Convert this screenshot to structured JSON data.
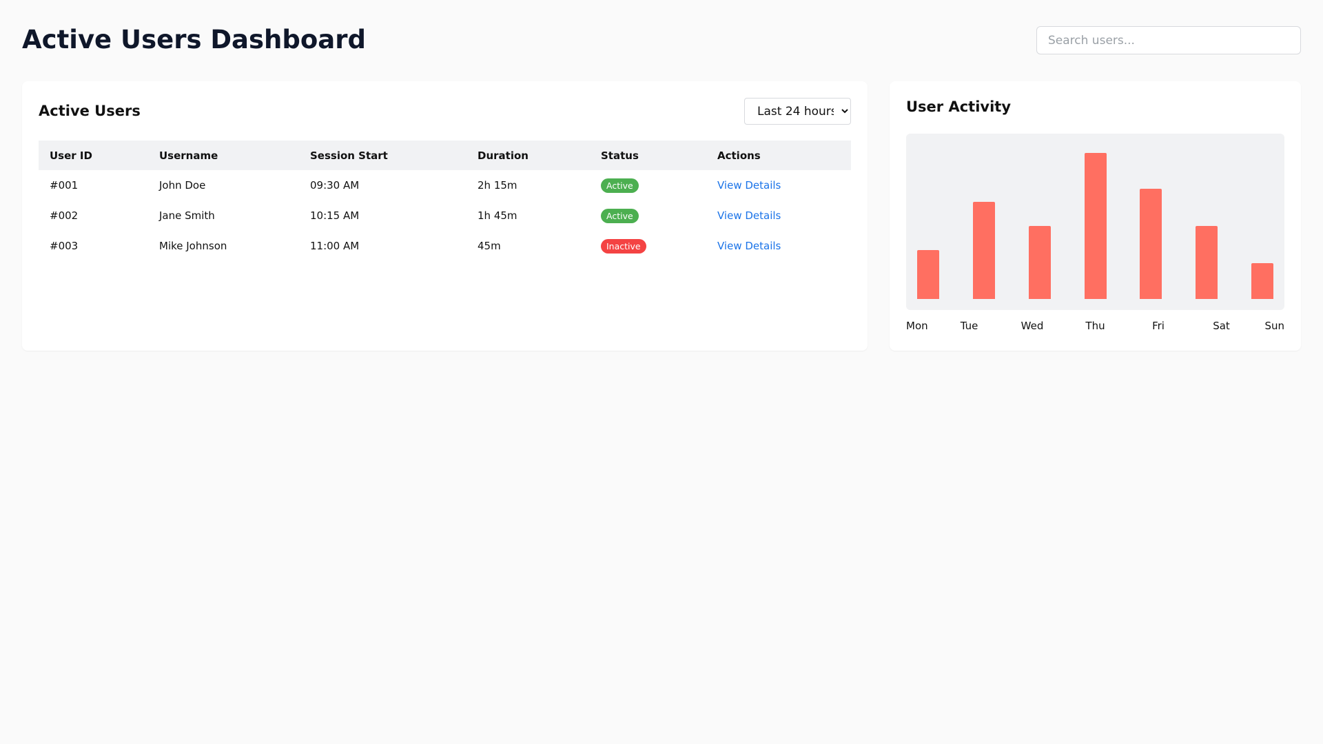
{
  "header": {
    "title": "Active Users Dashboard",
    "search_placeholder": "Search users..."
  },
  "users_panel": {
    "title": "Active Users",
    "time_range": {
      "selected": "Last 24 hours"
    },
    "columns": [
      "User ID",
      "Username",
      "Session Start",
      "Duration",
      "Status",
      "Actions"
    ],
    "rows": [
      {
        "id": "#001",
        "username": "John Doe",
        "session_start": "09:30 AM",
        "duration": "2h 15m",
        "status": "Active",
        "action": "View Details"
      },
      {
        "id": "#002",
        "username": "Jane Smith",
        "session_start": "10:15 AM",
        "duration": "1h 45m",
        "status": "Active",
        "action": "View Details"
      },
      {
        "id": "#003",
        "username": "Mike Johnson",
        "session_start": "11:00 AM",
        "duration": "45m",
        "status": "Inactive",
        "action": "View Details"
      }
    ]
  },
  "activity_panel": {
    "title": "User Activity"
  },
  "colors": {
    "active": "#4caf50",
    "inactive": "#f44343",
    "bar": "#ff6f61",
    "link": "#1a73e8"
  },
  "chart_data": {
    "type": "bar",
    "title": "",
    "xlabel": "",
    "ylabel": "",
    "categories": [
      "Mon",
      "Tue",
      "Wed",
      "Thu",
      "Fri",
      "Sat",
      "Sun"
    ],
    "values": [
      30,
      60,
      45,
      90,
      68,
      45,
      22
    ],
    "ylim": [
      0,
      95
    ],
    "grid": false
  }
}
